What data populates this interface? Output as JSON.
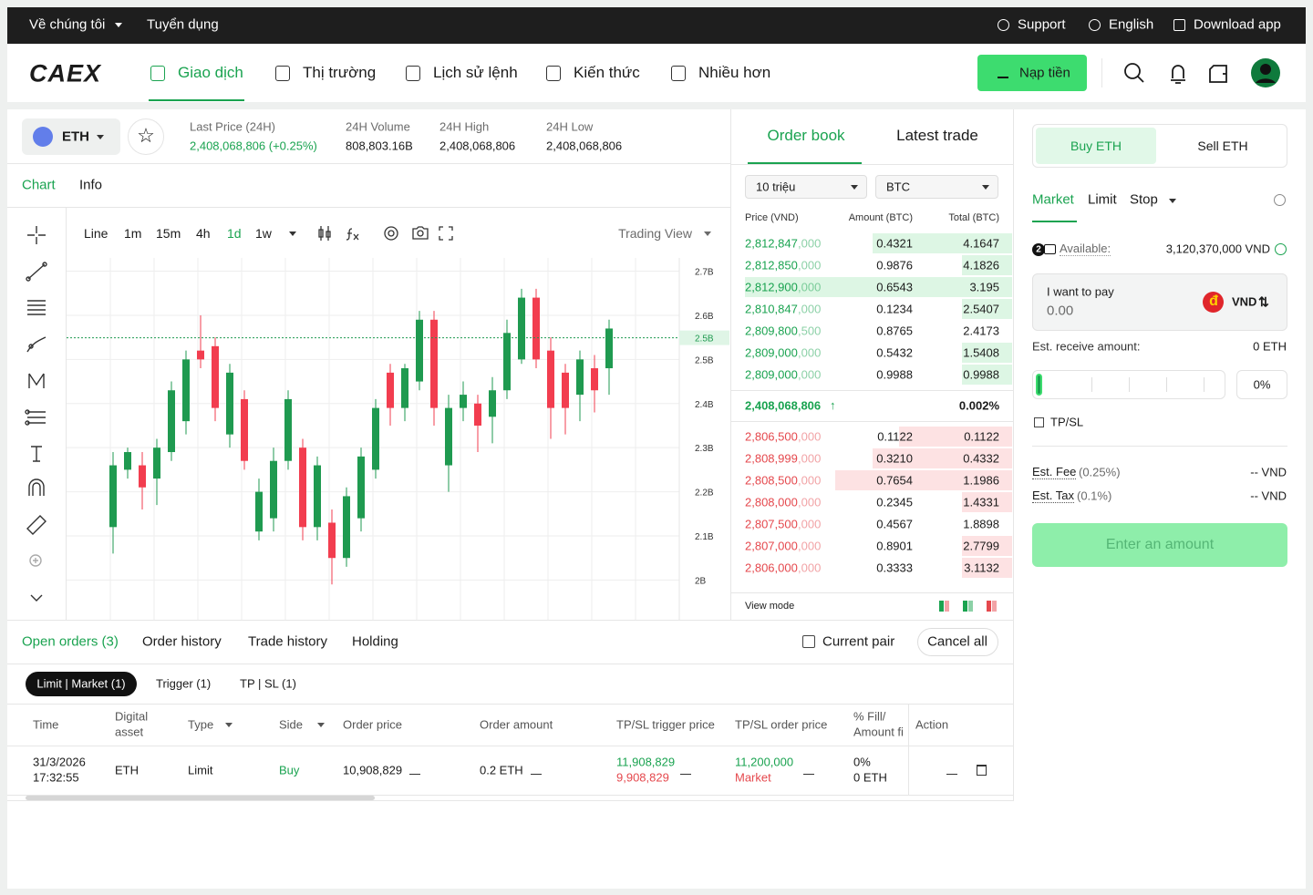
{
  "topbar": {
    "left": [
      "Về chúng tôi",
      "Tuyển dụng"
    ],
    "right": [
      "Support",
      "English",
      "Download app"
    ]
  },
  "nav": {
    "brand": "CAEX",
    "items": [
      "Giao dịch",
      "Thị trường",
      "Lịch sử lệnh",
      "Kiến thức",
      "Nhiều hơn"
    ],
    "deposit": "Nạp tiền"
  },
  "ticker": {
    "asset": "ETH",
    "stats": [
      {
        "label": "Last Price (24H)",
        "value": "2,408,068,806 (+0.25%)"
      },
      {
        "label": "24H Volume",
        "value": "808,803.16B"
      },
      {
        "label": "24H High",
        "value": "2,408,068,806"
      },
      {
        "label": "24H Low",
        "value": "2,408,068,806"
      }
    ]
  },
  "chart_tabs": [
    "Chart",
    "Info"
  ],
  "toolbar": {
    "intervals": [
      "Line",
      "1m",
      "15m",
      "4h",
      "1d",
      "1w"
    ],
    "view": "Trading View"
  },
  "chart_data": {
    "type": "candlestick",
    "open": [
      2.12,
      2.25,
      2.26,
      2.23,
      2.29,
      2.36,
      2.52,
      2.53,
      2.33,
      2.41,
      2.11,
      2.14,
      2.27,
      2.3,
      2.12,
      2.13,
      2.05,
      2.14,
      2.25,
      2.47,
      2.39,
      2.45,
      2.59,
      2.26,
      2.39,
      2.4,
      2.37,
      2.43,
      2.5,
      2.64,
      2.52,
      2.47,
      2.42,
      2.48,
      2.48
    ],
    "high": [
      2.29,
      2.3,
      2.29,
      2.32,
      2.45,
      2.52,
      2.6,
      2.55,
      2.49,
      2.43,
      2.23,
      2.3,
      2.43,
      2.32,
      2.28,
      2.16,
      2.21,
      2.3,
      2.41,
      2.49,
      2.49,
      2.61,
      2.61,
      2.42,
      2.45,
      2.42,
      2.46,
      2.59,
      2.66,
      2.66,
      2.55,
      2.49,
      2.52,
      2.51,
      2.59
    ],
    "low": [
      2.06,
      2.23,
      2.16,
      2.17,
      2.27,
      2.33,
      2.48,
      2.36,
      2.3,
      2.25,
      2.09,
      2.11,
      2.25,
      2.09,
      2.09,
      1.99,
      2.03,
      2.11,
      2.23,
      2.35,
      2.36,
      2.43,
      2.35,
      2.2,
      2.36,
      2.29,
      2.31,
      2.41,
      2.49,
      2.48,
      2.32,
      2.33,
      2.36,
      2.38,
      2.42
    ],
    "close": [
      2.26,
      2.29,
      2.21,
      2.3,
      2.43,
      2.5,
      2.5,
      2.39,
      2.47,
      2.27,
      2.2,
      2.27,
      2.41,
      2.12,
      2.26,
      2.05,
      2.19,
      2.28,
      2.39,
      2.39,
      2.48,
      2.59,
      2.39,
      2.39,
      2.42,
      2.35,
      2.43,
      2.56,
      2.64,
      2.5,
      2.39,
      2.39,
      2.5,
      2.43,
      2.57
    ],
    "ylim": [
      1.91,
      2.73
    ],
    "yticks": [
      {
        "value": 2.7,
        "label": "2.7B"
      },
      {
        "value": 2.6,
        "label": "2.6B"
      },
      {
        "value": 2.5,
        "label": "2.5B"
      },
      {
        "value": 2.4,
        "label": "2.4B"
      },
      {
        "value": 2.3,
        "label": "2.3B"
      },
      {
        "value": 2.2,
        "label": "2.2B"
      },
      {
        "value": 2.1,
        "label": "2.1B"
      },
      {
        "value": 2,
        "label": "2B"
      }
    ],
    "price_line": {
      "value": 2.549,
      "label": "2.5B"
    },
    "up_color": "#1f9a50",
    "down_color": "#f23d4f",
    "grid": true
  },
  "orderbook": {
    "tabs": [
      "Order book",
      "Latest trade"
    ],
    "selects": [
      "10 triệu",
      "BTC"
    ],
    "headers": [
      "Price (VND)",
      "Amount (BTC)",
      "Total (BTC)"
    ],
    "buy_rows": [
      {
        "price": "2,812,847",
        "tail": ",000",
        "amount": "0.4321",
        "total": "4.1647"
      },
      {
        "price": "2,812,850",
        "tail": ",000",
        "amount": "0.9876",
        "total": "4.1826"
      },
      {
        "price": "2,812,900",
        "tail": ",000",
        "amount": "0.6543",
        "total": "3.195"
      },
      {
        "price": "2,810,847",
        "tail": ",000",
        "amount": "0.1234",
        "total": "2.5407"
      },
      {
        "price": "2,809,800",
        "tail": ",500",
        "amount": "0.8765",
        "total": "2.4173"
      },
      {
        "price": "2,809,000",
        "tail": ",000",
        "amount": "0.5432",
        "total": "1.5408"
      },
      {
        "price": "2,809,000",
        "tail": ",000",
        "amount": "0.9988",
        "total": "0.9988"
      }
    ],
    "mid_price": "2,408,068,806",
    "mid_change": "0.002%",
    "sell_rows": [
      {
        "price": "2,806,500",
        "tail": ",000",
        "amount": "0.1122",
        "total": "0.1122"
      },
      {
        "price": "2,808,999",
        "tail": ",000",
        "amount": "0.3210",
        "total": "0.4332"
      },
      {
        "price": "2,808,500",
        "tail": ",000",
        "amount": "0.7654",
        "total": "1.1986"
      },
      {
        "price": "2,808,000",
        "tail": ",000",
        "amount": "0.2345",
        "total": "1.4331"
      },
      {
        "price": "2,807,500",
        "tail": ",000",
        "amount": "0.4567",
        "total": "1.8898"
      },
      {
        "price": "2,807,000",
        "tail": ",000",
        "amount": "0.8901",
        "total": "2.7799"
      },
      {
        "price": "2,806,000",
        "tail": ",000",
        "amount": "0.3333",
        "total": "3.1132"
      }
    ],
    "view_mode": "View mode"
  },
  "orders": {
    "tabs": [
      "Open orders (3)",
      "Order history",
      "Trade history",
      "Holding"
    ],
    "current_pair": "Current pair",
    "cancel_all": "Cancel all",
    "subtabs": [
      "Limit | Market (1)",
      "Trigger (1)",
      "TP | SL (1)"
    ],
    "headers": [
      [
        "Time"
      ],
      [
        "Digital",
        "asset"
      ],
      [
        "Type"
      ],
      [
        "Side"
      ],
      [
        "Order price"
      ],
      [
        "Order amount"
      ],
      [
        "TP/SL trigger price"
      ],
      [
        "TP/SL order price"
      ],
      [
        "% Fill/",
        "Amount fi"
      ],
      [
        "Action"
      ]
    ],
    "row": {
      "time": [
        "31/3/2026",
        "17:32:55"
      ],
      "asset": "ETH",
      "type": "Limit",
      "side": "Buy",
      "order_price": "10,908,829",
      "order_amount": "0.2 ETH",
      "trigger_price": [
        "11,908,829",
        "9,908,829"
      ],
      "order_tp_sl": [
        "11,200,000",
        "Market"
      ],
      "fill": [
        "0%",
        "0 ETH"
      ]
    }
  },
  "trade_panel": {
    "sides": [
      "Buy ETH",
      "Sell ETH"
    ],
    "order_types": [
      "Market",
      "Limit",
      "Stop"
    ],
    "badge": "2",
    "available_label": "Available:",
    "available_value": "3,120,370,000 VND",
    "pay_label": "I want to pay",
    "pay_value": "0.00",
    "pay_icon": "đ",
    "pay_currency": "VND",
    "receive_label": "Est. receive amount:",
    "receive_value": "0 ETH",
    "percent": "0%",
    "tpsl": "TP/SL",
    "fee_label": "Est. Fee",
    "fee_rate": "(0.25%)",
    "fee_value": "-- VND",
    "tax_label": "Est. Tax",
    "tax_rate": "(0.1%)",
    "tax_value": "-- VND",
    "submit": "Enter an amount"
  }
}
